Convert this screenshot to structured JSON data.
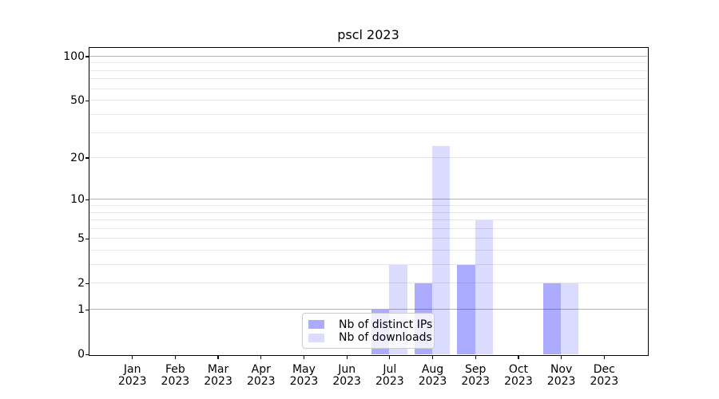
{
  "chart_data": {
    "type": "bar",
    "title": "pscl 2023",
    "categories": [
      "Jan",
      "Feb",
      "Mar",
      "Apr",
      "May",
      "Jun",
      "Jul",
      "Aug",
      "Sep",
      "Oct",
      "Nov",
      "Dec"
    ],
    "category_year": "2023",
    "series": [
      {
        "name": "Nb of distinct IPs",
        "color": "rgba(0,0,255,0.33)",
        "values": [
          0,
          0,
          0,
          0,
          0,
          0,
          1,
          2,
          3,
          0,
          2,
          0
        ]
      },
      {
        "name": "Nb of downloads",
        "color": "rgba(0,0,255,0.14)",
        "values": [
          0,
          0,
          0,
          0,
          0,
          0,
          3,
          24,
          7,
          0,
          2,
          0
        ]
      }
    ],
    "y_ticks": [
      0,
      1,
      2,
      5,
      10,
      20,
      50,
      100
    ],
    "y_scale": "log1p",
    "ylim": [
      0,
      114.7
    ],
    "grid": "on",
    "legend_position": "lower center",
    "xlabel": "",
    "ylabel": ""
  },
  "colors": {
    "bar_distinct_ips": "#abaaf9",
    "bar_downloads": "#dbdafa",
    "grid_major": "#b3b3b3",
    "grid_minor": "#e7e7e7",
    "spine": "#000000",
    "background": "#ffffff"
  }
}
